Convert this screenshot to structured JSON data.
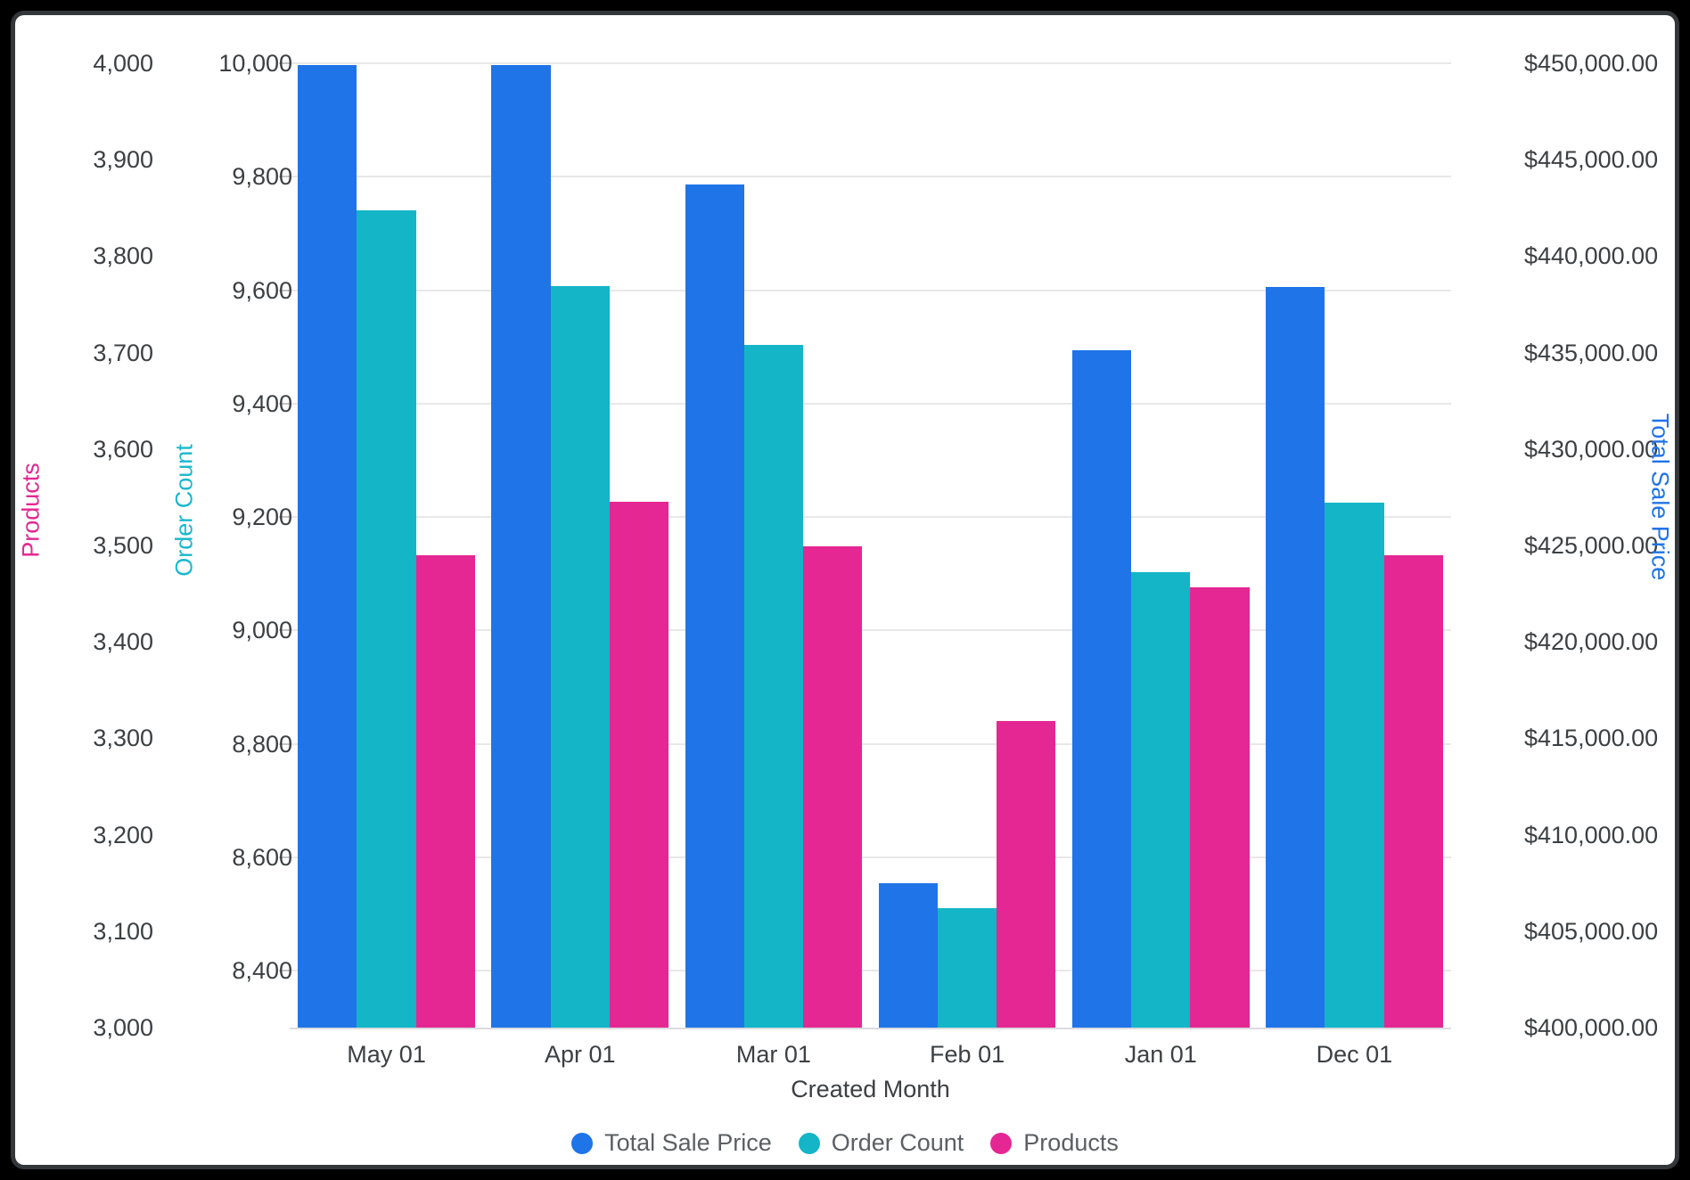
{
  "chart_data": {
    "type": "bar",
    "title": "",
    "xlabel": "Created Month",
    "categories": [
      "May 01",
      "Apr 01",
      "Mar 01",
      "Feb 01",
      "Jan 01",
      "Dec 01"
    ],
    "series": [
      {
        "name": "Total Sale Price",
        "axis": "total_sale_price",
        "color": "#1f74e8",
        "values": [
          449900,
          449900,
          443700,
          407500,
          435100,
          438400
        ]
      },
      {
        "name": "Order Count",
        "axis": "order_count",
        "color": "#13b5c7",
        "values": [
          9740,
          9607,
          9503,
          8510,
          9103,
          9225
        ]
      },
      {
        "name": "Products",
        "axis": "products",
        "color": "#e42792",
        "values": [
          3490,
          3545,
          3499,
          3318,
          3457,
          3490
        ]
      }
    ],
    "axes": {
      "products": {
        "title": "Products",
        "color": "#e42792",
        "min": 3000,
        "max": 4000,
        "tick_labels": [
          "4,000",
          "3,900",
          "3,800",
          "3,700",
          "3,600",
          "3,500",
          "3,400",
          "3,300",
          "3,200",
          "3,100",
          "3,000"
        ],
        "tick_values": [
          4000,
          3900,
          3800,
          3700,
          3600,
          3500,
          3400,
          3300,
          3200,
          3100,
          3000
        ]
      },
      "order_count": {
        "title": "Order Count",
        "color": "#19b9cc",
        "min": 8300,
        "max": 10000,
        "tick_labels": [
          "10,000",
          "9,800",
          "9,600",
          "9,400",
          "9,200",
          "9,000",
          "8,800",
          "8,600",
          "8,400"
        ],
        "tick_values": [
          10000,
          9800,
          9600,
          9400,
          9200,
          9000,
          8800,
          8600,
          8400
        ]
      },
      "total_sale_price": {
        "title": "Total Sale Price",
        "color": "#1f74e8",
        "min": 400000,
        "max": 450000,
        "tick_labels": [
          "$450,000.00",
          "$445,000.00",
          "$440,000.00",
          "$435,000.00",
          "$430,000.00",
          "$425,000.00",
          "$420,000.00",
          "$415,000.00",
          "$410,000.00",
          "$405,000.00",
          "$400,000.00"
        ],
        "tick_values": [
          450000,
          445000,
          440000,
          435000,
          430000,
          425000,
          420000,
          415000,
          410000,
          405000,
          400000
        ]
      }
    },
    "legend_position": "bottom",
    "grid": true,
    "gridline_axis": "order_count"
  }
}
